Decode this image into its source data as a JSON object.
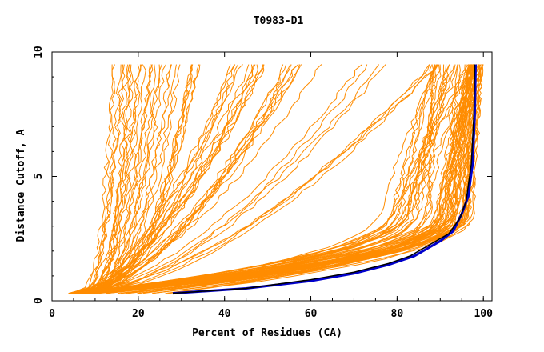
{
  "chart_data": {
    "type": "line",
    "title": "T0983-D1",
    "xlabel": "Percent of Residues (CA)",
    "ylabel": "Distance Cutoff, A",
    "xlim": [
      0,
      102
    ],
    "ylim": [
      0,
      10
    ],
    "x_ticks": [
      "0",
      "20",
      "40",
      "60",
      "80",
      "100"
    ],
    "y_ticks": [
      "0",
      "5",
      "10"
    ],
    "grid": false,
    "colors": {
      "background_series": "#ff8c00",
      "highlight_primary": "#0000cc",
      "highlight_secondary": "#000000"
    },
    "highlighted_series": [
      {
        "color": "#0000cc",
        "x": [
          28,
          45,
          60,
          70,
          78,
          84,
          90,
          93,
          95,
          96.5,
          97.5,
          98,
          98.2
        ],
        "y": [
          0.3,
          0.5,
          0.8,
          1.1,
          1.45,
          1.8,
          2.4,
          2.8,
          3.5,
          4.2,
          5.5,
          7.5,
          9.5
        ]
      },
      {
        "color": "#000000",
        "x": [
          28,
          45,
          60,
          70,
          78,
          83,
          88,
          92,
          94.5,
          96,
          97.2,
          97.8,
          98
        ],
        "y": [
          0.3,
          0.5,
          0.85,
          1.15,
          1.5,
          1.8,
          2.3,
          2.7,
          3.3,
          4.0,
          5.5,
          7.5,
          9.5
        ]
      }
    ],
    "background_series_groups": [
      {
        "description_count": 30,
        "x_start": [
          3.5,
          9
        ],
        "x_at_top": [
          14,
          34
        ],
        "shape": "steep"
      },
      {
        "description_count": 30,
        "x_start": [
          4,
          9
        ],
        "x_at_top": [
          40,
          90
        ],
        "shape": "diagonal"
      },
      {
        "description_count": 25,
        "x_start": [
          4,
          9
        ],
        "x_knee": [
          70,
          92
        ],
        "x_at_top": [
          88,
          99
        ],
        "shape": "knee"
      },
      {
        "description_count": 40,
        "x_start": [
          5,
          30
        ],
        "x_knee": [
          86,
          97
        ],
        "x_at_top": [
          96,
          100
        ],
        "shape": "tight-knee"
      }
    ]
  }
}
